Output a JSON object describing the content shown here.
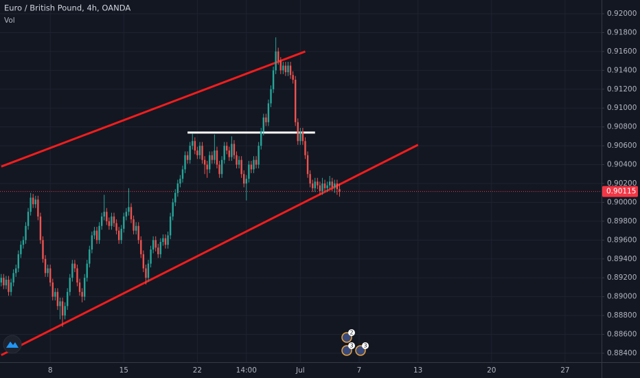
{
  "chart_data": {
    "type": "candlestick",
    "title": "Euro / British Pound, 4h, OANDA",
    "indicator": "Vol",
    "up_color": "#26a69a",
    "down_color": "#ef5350",
    "grid": true,
    "ylim": [
      0.88305,
      0.92146
    ],
    "yticks": [
      {
        "value": 0.92,
        "label": "0.92000"
      },
      {
        "value": 0.918,
        "label": "0.91800"
      },
      {
        "value": 0.916,
        "label": "0.91600"
      },
      {
        "value": 0.914,
        "label": "0.91400"
      },
      {
        "value": 0.912,
        "label": "0.91200"
      },
      {
        "value": 0.91,
        "label": "0.91000"
      },
      {
        "value": 0.908,
        "label": "0.90800"
      },
      {
        "value": 0.906,
        "label": "0.90600"
      },
      {
        "value": 0.904,
        "label": "0.90400"
      },
      {
        "value": 0.902,
        "label": "0.90200"
      },
      {
        "value": 0.9,
        "label": "0.90000"
      },
      {
        "value": 0.898,
        "label": "0.89800"
      },
      {
        "value": 0.896,
        "label": "0.89600"
      },
      {
        "value": 0.894,
        "label": "0.89400"
      },
      {
        "value": 0.892,
        "label": "0.89200"
      },
      {
        "value": 0.89,
        "label": "0.89000"
      },
      {
        "value": 0.888,
        "label": "0.88800"
      },
      {
        "value": 0.886,
        "label": "0.88600"
      },
      {
        "value": 0.884,
        "label": "0.88400"
      }
    ],
    "last_price": 0.90115,
    "last_price_color": "#f23645",
    "categories": [
      null,
      null,
      null,
      null,
      null,
      null,
      null,
      null,
      null,
      null,
      null,
      null,
      null,
      null,
      null,
      null,
      null,
      null,
      null,
      null,
      "8",
      null,
      null,
      null,
      null,
      null,
      null,
      null,
      null,
      null,
      null,
      null,
      null,
      null,
      null,
      null,
      null,
      null,
      null,
      null,
      null,
      null,
      null,
      null,
      null,
      null,
      null,
      null,
      null,
      null,
      "15",
      null,
      null,
      null,
      null,
      null,
      null,
      null,
      null,
      null,
      null,
      null,
      null,
      null,
      null,
      null,
      null,
      null,
      null,
      null,
      null,
      null,
      null,
      null,
      null,
      null,
      null,
      null,
      null,
      null,
      "22",
      null,
      null,
      null,
      null,
      null,
      null,
      null,
      null,
      null,
      null,
      null,
      null,
      null,
      null,
      null,
      null,
      null,
      null,
      null,
      "14:00",
      null,
      null,
      null,
      null,
      null,
      null,
      null,
      null,
      null,
      null,
      null,
      null,
      null,
      null,
      null,
      null,
      null,
      null,
      null,
      null,
      null,
      "Jul",
      null,
      null,
      null,
      null,
      null,
      null,
      null,
      null,
      null,
      null,
      null,
      null,
      null,
      null,
      null,
      null,
      null,
      null,
      null,
      null,
      null,
      null,
      null,
      "7",
      null,
      null,
      null,
      null,
      null,
      null,
      null,
      null,
      null,
      null,
      null,
      null,
      null,
      null,
      null,
      null,
      null,
      null,
      null,
      null,
      null,
      null,
      null,
      "13",
      null,
      null,
      null,
      null,
      null,
      null,
      null,
      null,
      null,
      null,
      null,
      null,
      null,
      null,
      null,
      null,
      null,
      null,
      null,
      null,
      null,
      null,
      null,
      null,
      null,
      null,
      null,
      null,
      null,
      "20",
      null,
      null,
      null,
      null,
      null,
      null,
      null,
      null,
      null,
      null,
      null,
      null,
      null,
      null,
      null,
      null,
      null,
      null,
      null,
      null,
      null,
      null,
      null,
      null,
      null,
      null,
      null,
      null,
      null,
      "27"
    ],
    "ohlc": [
      [
        0.8915,
        0.8924,
        0.8911,
        0.892
      ],
      [
        0.892,
        0.8924,
        0.8908,
        0.8912
      ],
      [
        0.8912,
        0.8922,
        0.8908,
        0.8918
      ],
      [
        0.8918,
        0.8922,
        0.8901,
        0.8905
      ],
      [
        0.8905,
        0.8919,
        0.8901,
        0.8915
      ],
      [
        0.8915,
        0.8929,
        0.8911,
        0.8925
      ],
      [
        0.8925,
        0.8934,
        0.8921,
        0.893
      ],
      [
        0.893,
        0.8949,
        0.8926,
        0.8945
      ],
      [
        0.8945,
        0.8959,
        0.8941,
        0.8955
      ],
      [
        0.8955,
        0.8964,
        0.8951,
        0.896
      ],
      [
        0.896,
        0.8979,
        0.8956,
        0.8975
      ],
      [
        0.8975,
        0.8994,
        0.8971,
        0.899
      ],
      [
        0.899,
        0.901,
        0.8986,
        0.9005
      ],
      [
        0.9005,
        0.9009,
        0.8994,
        0.8998
      ],
      [
        0.8998,
        0.9007,
        0.8994,
        0.9003
      ],
      [
        0.9003,
        0.9007,
        0.8981,
        0.8985
      ],
      [
        0.8985,
        0.8989,
        0.8956,
        0.896
      ],
      [
        0.896,
        0.8964,
        0.8936,
        0.894
      ],
      [
        0.894,
        0.8944,
        0.8921,
        0.8925
      ],
      [
        0.8925,
        0.8934,
        0.8921,
        0.893
      ],
      [
        0.893,
        0.8934,
        0.8911,
        0.8915
      ],
      [
        0.8915,
        0.8919,
        0.8896,
        0.89
      ],
      [
        0.89,
        0.8909,
        0.8896,
        0.8905
      ],
      [
        0.8905,
        0.8909,
        0.8886,
        0.889
      ],
      [
        0.889,
        0.8899,
        0.8876,
        0.8895
      ],
      [
        0.8895,
        0.8899,
        0.8868,
        0.888
      ],
      [
        0.888,
        0.8894,
        0.8876,
        0.889
      ],
      [
        0.889,
        0.8909,
        0.8886,
        0.8905
      ],
      [
        0.8905,
        0.8924,
        0.8901,
        0.892
      ],
      [
        0.892,
        0.8939,
        0.8916,
        0.8935
      ],
      [
        0.8935,
        0.8939,
        0.8926,
        0.893
      ],
      [
        0.893,
        0.8934,
        0.8911,
        0.8915
      ],
      [
        0.8915,
        0.8919,
        0.8901,
        0.8905
      ],
      [
        0.8905,
        0.8909,
        0.8894,
        0.89
      ],
      [
        0.89,
        0.8924,
        0.8896,
        0.892
      ],
      [
        0.892,
        0.8939,
        0.8916,
        0.8935
      ],
      [
        0.8935,
        0.8954,
        0.8931,
        0.895
      ],
      [
        0.895,
        0.8969,
        0.8946,
        0.8965
      ],
      [
        0.8965,
        0.8974,
        0.8961,
        0.897
      ],
      [
        0.897,
        0.8974,
        0.8956,
        0.896
      ],
      [
        0.896,
        0.8979,
        0.8956,
        0.8975
      ],
      [
        0.8975,
        0.8989,
        0.8971,
        0.8985
      ],
      [
        0.8985,
        0.9008,
        0.8981,
        0.899
      ],
      [
        0.899,
        0.8994,
        0.8976,
        0.898
      ],
      [
        0.898,
        0.8984,
        0.8971,
        0.8975
      ],
      [
        0.8975,
        0.8989,
        0.8971,
        0.8985
      ],
      [
        0.8985,
        0.8989,
        0.8974,
        0.8978
      ],
      [
        0.8978,
        0.8982,
        0.8966,
        0.897
      ],
      [
        0.897,
        0.8974,
        0.8956,
        0.896
      ],
      [
        0.896,
        0.8976,
        0.8956,
        0.8972
      ],
      [
        0.8972,
        0.8989,
        0.8968,
        0.8985
      ],
      [
        0.8985,
        0.8994,
        0.8981,
        0.899
      ],
      [
        0.899,
        0.9015,
        0.8986,
        0.8995
      ],
      [
        0.8995,
        0.8999,
        0.8978,
        0.8982
      ],
      [
        0.8982,
        0.8986,
        0.8966,
        0.897
      ],
      [
        0.897,
        0.8979,
        0.8966,
        0.8975
      ],
      [
        0.8975,
        0.8979,
        0.8956,
        0.896
      ],
      [
        0.896,
        0.8964,
        0.8941,
        0.8945
      ],
      [
        0.8945,
        0.8949,
        0.8926,
        0.893
      ],
      [
        0.893,
        0.8934,
        0.8913,
        0.892
      ],
      [
        0.892,
        0.8939,
        0.8916,
        0.8935
      ],
      [
        0.8935,
        0.8954,
        0.8931,
        0.895
      ],
      [
        0.895,
        0.8964,
        0.8946,
        0.896
      ],
      [
        0.896,
        0.8964,
        0.8948,
        0.8952
      ],
      [
        0.8952,
        0.8956,
        0.8941,
        0.8945
      ],
      [
        0.8945,
        0.8962,
        0.8941,
        0.8958
      ],
      [
        0.8958,
        0.8966,
        0.8954,
        0.8962
      ],
      [
        0.8962,
        0.8966,
        0.8951,
        0.8955
      ],
      [
        0.8955,
        0.8969,
        0.8951,
        0.8965
      ],
      [
        0.8965,
        0.8989,
        0.8961,
        0.8985
      ],
      [
        0.8985,
        0.9004,
        0.8981,
        0.9
      ],
      [
        0.9,
        0.9014,
        0.8996,
        0.901
      ],
      [
        0.901,
        0.9024,
        0.9006,
        0.902
      ],
      [
        0.902,
        0.9029,
        0.9016,
        0.9025
      ],
      [
        0.9025,
        0.9039,
        0.9021,
        0.9035
      ],
      [
        0.9035,
        0.9054,
        0.9031,
        0.905
      ],
      [
        0.905,
        0.9054,
        0.9041,
        0.9045
      ],
      [
        0.9045,
        0.9064,
        0.9041,
        0.906
      ],
      [
        0.906,
        0.9073,
        0.9056,
        0.9065
      ],
      [
        0.9065,
        0.9069,
        0.9051,
        0.9055
      ],
      [
        0.9055,
        0.9059,
        0.9046,
        0.905
      ],
      [
        0.905,
        0.9064,
        0.9046,
        0.906
      ],
      [
        0.906,
        0.9064,
        0.9041,
        0.9045
      ],
      [
        0.9045,
        0.9049,
        0.903,
        0.904
      ],
      [
        0.904,
        0.9044,
        0.9026,
        0.9035
      ],
      [
        0.9035,
        0.9054,
        0.9031,
        0.905
      ],
      [
        0.905,
        0.9054,
        0.9041,
        0.9045
      ],
      [
        0.9045,
        0.9072,
        0.9041,
        0.9055
      ],
      [
        0.9055,
        0.9059,
        0.9036,
        0.904
      ],
      [
        0.904,
        0.9044,
        0.9026,
        0.903
      ],
      [
        0.903,
        0.9049,
        0.9026,
        0.9045
      ],
      [
        0.9045,
        0.9064,
        0.9041,
        0.906
      ],
      [
        0.906,
        0.9064,
        0.9051,
        0.9055
      ],
      [
        0.9055,
        0.9059,
        0.9044,
        0.9048
      ],
      [
        0.9048,
        0.907,
        0.9044,
        0.9062
      ],
      [
        0.9062,
        0.9066,
        0.9046,
        0.905
      ],
      [
        0.905,
        0.9054,
        0.9036,
        0.904
      ],
      [
        0.904,
        0.9049,
        0.9036,
        0.9045
      ],
      [
        0.9045,
        0.9049,
        0.9026,
        0.903
      ],
      [
        0.903,
        0.9034,
        0.9016,
        0.902
      ],
      [
        0.902,
        0.9029,
        0.9002,
        0.9025
      ],
      [
        0.9025,
        0.9044,
        0.9021,
        0.904
      ],
      [
        0.904,
        0.9044,
        0.9031,
        0.9035
      ],
      [
        0.9035,
        0.9049,
        0.9031,
        0.9045
      ],
      [
        0.9045,
        0.9049,
        0.9036,
        0.904
      ],
      [
        0.904,
        0.9064,
        0.9036,
        0.906
      ],
      [
        0.906,
        0.9079,
        0.9056,
        0.9075
      ],
      [
        0.9075,
        0.9094,
        0.9071,
        0.909
      ],
      [
        0.909,
        0.9094,
        0.9081,
        0.9085
      ],
      [
        0.9085,
        0.9109,
        0.9081,
        0.9105
      ],
      [
        0.9105,
        0.9124,
        0.9101,
        0.912
      ],
      [
        0.912,
        0.9144,
        0.9116,
        0.914
      ],
      [
        0.914,
        0.9175,
        0.9136,
        0.916
      ],
      [
        0.916,
        0.9164,
        0.9146,
        0.915
      ],
      [
        0.915,
        0.9154,
        0.9136,
        0.914
      ],
      [
        0.914,
        0.9149,
        0.9136,
        0.9145
      ],
      [
        0.9145,
        0.9149,
        0.9134,
        0.9138
      ],
      [
        0.9138,
        0.9149,
        0.9134,
        0.9145
      ],
      [
        0.9145,
        0.9149,
        0.9131,
        0.9135
      ],
      [
        0.9135,
        0.9139,
        0.9126,
        0.913
      ],
      [
        0.913,
        0.9134,
        0.9081,
        0.9085
      ],
      [
        0.9085,
        0.9089,
        0.9061,
        0.9065
      ],
      [
        0.9065,
        0.9079,
        0.9061,
        0.9075
      ],
      [
        0.9075,
        0.9079,
        0.9061,
        0.9065
      ],
      [
        0.9065,
        0.9069,
        0.9046,
        0.905
      ],
      [
        0.905,
        0.9054,
        0.9026,
        0.903
      ],
      [
        0.903,
        0.9034,
        0.9016,
        0.902
      ],
      [
        0.902,
        0.9024,
        0.9011,
        0.9015
      ],
      [
        0.9015,
        0.9026,
        0.9011,
        0.9022
      ],
      [
        0.9022,
        0.9026,
        0.9014,
        0.9018
      ],
      [
        0.9018,
        0.9022,
        0.9008,
        0.9012
      ],
      [
        0.9012,
        0.9026,
        0.9008,
        0.902
      ],
      [
        0.902,
        0.9024,
        0.9011,
        0.9015
      ],
      [
        0.9015,
        0.9022,
        0.9011,
        0.9018
      ],
      [
        0.9018,
        0.9028,
        0.9014,
        0.9022
      ],
      [
        0.9022,
        0.9026,
        0.9012,
        0.9016
      ],
      [
        0.9016,
        0.9024,
        0.901,
        0.902
      ],
      [
        0.902,
        0.9024,
        0.9008,
        0.9014
      ],
      [
        0.9014,
        0.902,
        0.9006,
        0.90115
      ],
      null,
      null,
      null,
      null,
      null,
      null,
      null,
      null,
      null,
      null,
      null,
      null,
      null,
      null,
      null,
      null,
      null,
      null,
      null,
      null,
      null,
      null,
      null,
      null,
      null,
      null,
      null,
      null,
      null,
      null,
      null,
      null,
      null,
      null,
      null,
      null,
      null,
      null,
      null,
      null,
      null,
      null,
      null,
      null,
      null,
      null,
      null,
      null,
      null,
      null,
      null,
      null,
      null,
      null,
      null,
      null,
      null,
      null,
      null,
      null,
      null,
      null,
      null,
      null,
      null,
      null,
      null,
      null,
      null,
      null,
      null,
      null,
      null,
      null,
      null,
      null,
      null,
      null,
      null,
      null,
      null,
      null,
      null,
      null,
      null,
      null,
      null,
      null,
      null,
      null,
      null,
      null
    ],
    "drawings": [
      {
        "color": "#f21d1d",
        "x": [
          0,
          124
        ],
        "y": [
          0.9038,
          0.916
        ]
      },
      {
        "color": "#f21d1d",
        "x": [
          0,
          170
        ],
        "y": [
          0.8838,
          0.9061
        ]
      },
      {
        "color": "#ffffff",
        "x": [
          76,
          128
        ],
        "y": [
          0.9074,
          0.9074
        ]
      }
    ],
    "events": [
      "2",
      "3",
      "3"
    ]
  }
}
